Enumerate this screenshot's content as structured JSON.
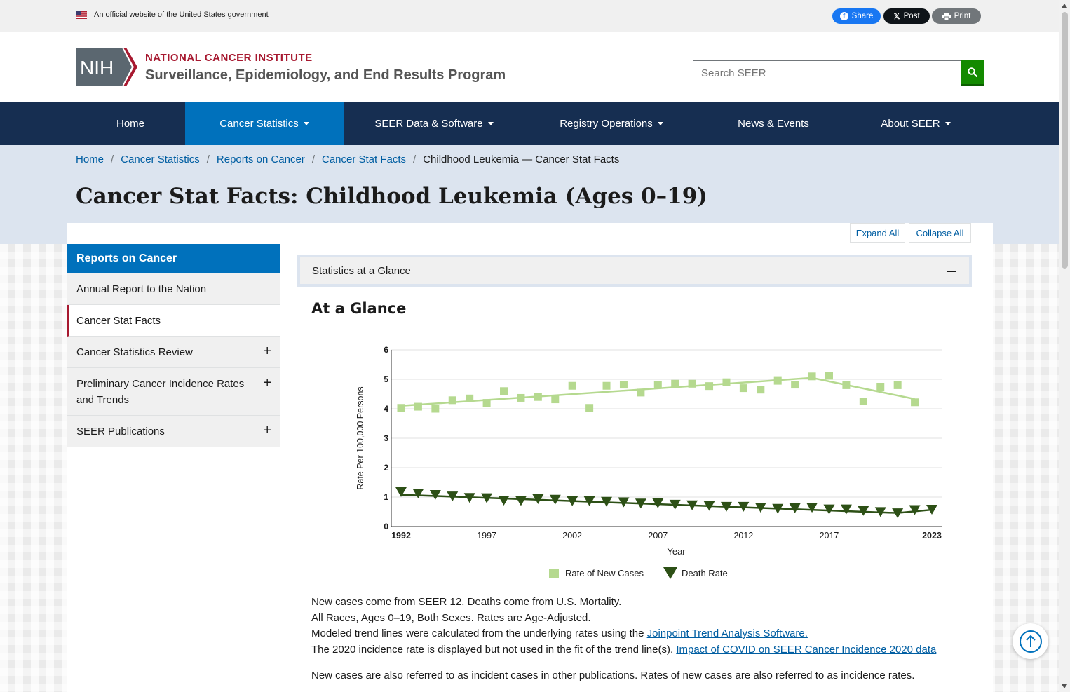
{
  "gov_banner": {
    "text": "An official website of the United States government",
    "share_label": "Share",
    "post_label": "Post",
    "print_label": "Print"
  },
  "header": {
    "logo_text": "NIH",
    "institute": "NATIONAL CANCER INSTITUTE",
    "program": "Surveillance, Epidemiology, and End Results Program",
    "search_placeholder": "Search SEER"
  },
  "nav": {
    "items": [
      {
        "label": "Home"
      },
      {
        "label": "Cancer Statistics"
      },
      {
        "label": "SEER Data & Software"
      },
      {
        "label": "Registry Operations"
      },
      {
        "label": "News & Events"
      },
      {
        "label": "About SEER"
      }
    ]
  },
  "breadcrumb": {
    "items": [
      "Home",
      "Cancer Statistics",
      "Reports on Cancer",
      "Cancer Stat Facts"
    ],
    "current": "Childhood Leukemia — Cancer Stat Facts"
  },
  "page": {
    "title": "Cancer Stat Facts: Childhood Leukemia (Ages 0–19)",
    "expand_all": "Expand All",
    "collapse_all": "Collapse All"
  },
  "sidebar": {
    "heading": "Reports on Cancer",
    "items": [
      {
        "label": "Annual Report to the Nation"
      },
      {
        "label": "Cancer Stat Facts"
      },
      {
        "label": "Cancer Statistics Review"
      },
      {
        "label": "Preliminary Cancer Incidence Rates and Trends"
      },
      {
        "label": "SEER Publications"
      }
    ]
  },
  "accordion": {
    "title": "Statistics at a Glance",
    "section_title": "At a Glance"
  },
  "chart_data": {
    "type": "scatter",
    "title": "",
    "xlabel": "Year",
    "ylabel": "Rate Per 100,000 Persons",
    "xlim": [
      1992,
      2023
    ],
    "ylim": [
      0,
      6
    ],
    "x_ticks": [
      1992,
      1997,
      2002,
      2007,
      2012,
      2017,
      2023
    ],
    "y_ticks": [
      0,
      1,
      2,
      3,
      4,
      5,
      6
    ],
    "grid": true,
    "legend_position": "bottom",
    "x": [
      1992,
      1993,
      1994,
      1995,
      1996,
      1997,
      1998,
      1999,
      2000,
      2001,
      2002,
      2003,
      2004,
      2005,
      2006,
      2007,
      2008,
      2009,
      2010,
      2011,
      2012,
      2013,
      2014,
      2015,
      2016,
      2017,
      2018,
      2019,
      2020,
      2021,
      2022,
      2023
    ],
    "series": [
      {
        "name": "Rate of New Cases",
        "marker": "square",
        "color": "#b5d98f",
        "values": [
          4.03,
          4.07,
          4.0,
          4.29,
          4.35,
          4.2,
          4.6,
          4.37,
          4.4,
          4.32,
          4.78,
          4.03,
          4.78,
          4.82,
          4.55,
          4.82,
          4.85,
          4.85,
          4.77,
          4.9,
          4.7,
          4.65,
          4.95,
          4.82,
          5.1,
          5.12,
          4.8,
          4.25,
          4.75,
          4.8,
          4.22,
          null
        ],
        "trend": [
          [
            1992,
            4.1
          ],
          [
            2016,
            5.05
          ],
          [
            2022,
            4.33
          ]
        ]
      },
      {
        "name": "Death Rate",
        "marker": "triangle-down",
        "color": "#2d5016",
        "values": [
          1.17,
          1.12,
          1.07,
          1.02,
          0.97,
          0.96,
          0.88,
          0.87,
          0.93,
          0.91,
          0.86,
          0.86,
          0.84,
          0.82,
          0.78,
          0.79,
          0.74,
          0.72,
          0.7,
          0.67,
          0.67,
          0.64,
          0.6,
          0.62,
          0.64,
          0.58,
          0.58,
          0.53,
          0.49,
          0.45,
          0.56,
          0.57
        ],
        "trend": [
          [
            1992,
            1.08
          ],
          [
            2021,
            0.46
          ],
          [
            2023,
            0.57
          ]
        ]
      }
    ]
  },
  "notes": {
    "line1": "New cases come from SEER 12. Deaths come from U.S. Mortality.",
    "line2": "All Races, Ages 0–19, Both Sexes. Rates are Age-Adjusted.",
    "line3": "Modeled trend lines were calculated from the underlying rates using the ",
    "line3_link": "Joinpoint Trend Analysis Software.",
    "line4": "The 2020 incidence rate is displayed but not used in the fit of the trend line(s). ",
    "line4_link": "Impact of COVID on SEER Cancer Incidence 2020 data",
    "line5": "New cases are also referred to as incident cases in other publications. Rates of new cases are also referred to as incidence rates."
  },
  "colors": {
    "nav_bg": "#162e51",
    "nav_active": "#0071bc",
    "accent_red": "#a71930",
    "search_green": "#138a00",
    "link": "#005ea2"
  }
}
